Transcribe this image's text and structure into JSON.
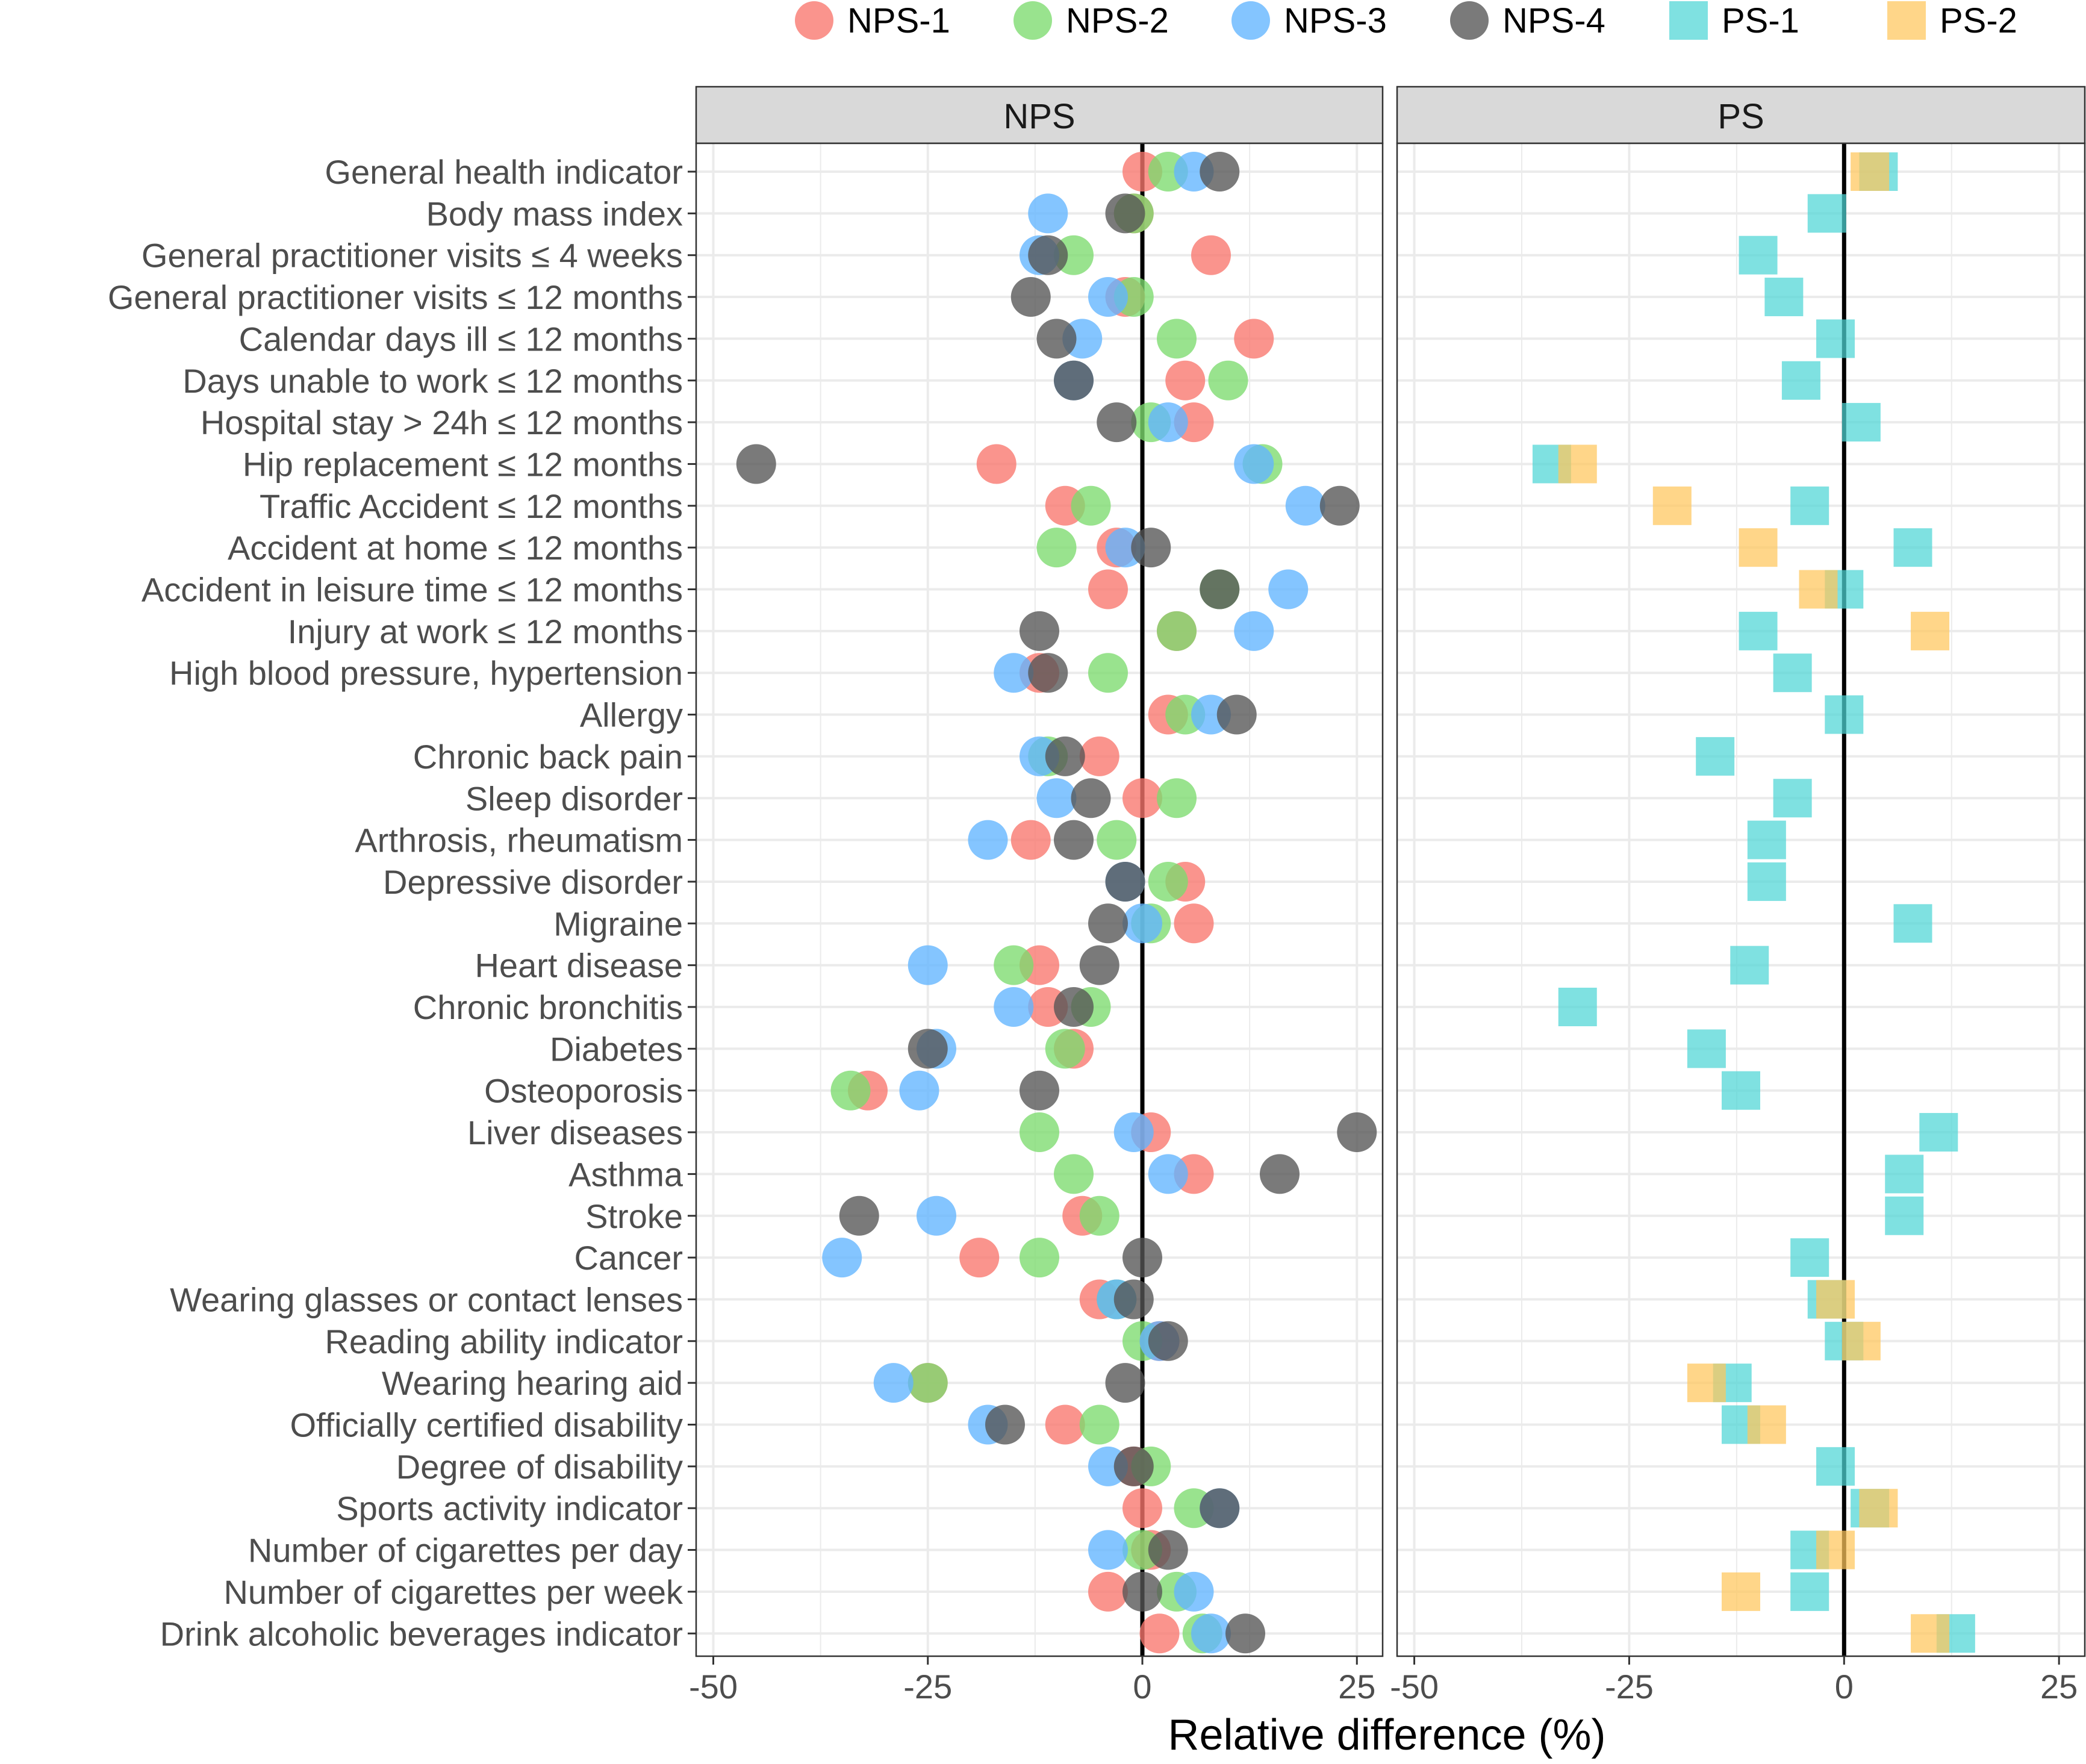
{
  "chart_data": {
    "type": "scatter",
    "xlabel": "Relative difference (%)",
    "xlim": [
      -52,
      28
    ],
    "xticks": [
      -50,
      -25,
      0,
      25
    ],
    "xtick_labels": [
      "-50",
      "-25",
      "0",
      "25"
    ],
    "reference_line_x": 0,
    "grid": true,
    "legend_position": "top",
    "panels": [
      "NPS",
      "PS"
    ],
    "categories": [
      "General health indicator",
      "Body mass index",
      "General practitioner visits ≤ 4 weeks",
      "General practitioner visits ≤ 12 months",
      "Calendar days ill ≤ 12 months",
      "Days unable to work ≤ 12 months",
      "Hospital stay > 24h ≤ 12 months",
      "Hip replacement ≤ 12 months",
      "Traffic Accident ≤ 12 months",
      "Accident at home ≤ 12 months",
      "Accident in leisure time ≤ 12 months",
      "Injury at work ≤ 12 months",
      "High blood pressure, hypertension",
      "Allergy",
      "Chronic back pain",
      "Sleep disorder",
      "Arthrosis, rheumatism",
      "Depressive disorder",
      "Migraine",
      "Heart disease",
      "Chronic bronchitis",
      "Diabetes",
      "Osteoporosis",
      "Liver diseases",
      "Asthma",
      "Stroke",
      "Cancer",
      "Wearing glasses or contact lenses",
      "Reading ability indicator",
      "Wearing hearing aid",
      "Officially certified disability",
      "Degree of disability",
      "Sports activity indicator",
      "Number of cigarettes per day",
      "Number of cigarettes per week",
      "Drink alcoholic beverages indicator"
    ],
    "series": [
      {
        "name": "NPS-1",
        "panel": "NPS",
        "shape": "circle",
        "color": "#F8766D",
        "values": [
          0,
          -1,
          8,
          -2,
          13,
          5,
          6,
          -17,
          -9,
          -3,
          -4,
          4,
          -12,
          3,
          -5,
          0,
          -13,
          5,
          6,
          -12,
          -11,
          -8,
          -32,
          1,
          6,
          -7,
          -19,
          -5,
          2,
          -25,
          -9,
          -1,
          0,
          1,
          -4,
          2
        ]
      },
      {
        "name": "NPS-2",
        "panel": "NPS",
        "shape": "circle",
        "color": "#7CDB6E",
        "values": [
          3,
          -1,
          -8,
          -1,
          4,
          10,
          1,
          14,
          -6,
          -10,
          9,
          4,
          -4,
          5,
          -11,
          4,
          -3,
          3,
          1,
          -15,
          -6,
          -9,
          -34,
          -12,
          -8,
          -5,
          -12,
          -3,
          0,
          -25,
          -5,
          1,
          6,
          0,
          4,
          7
        ]
      },
      {
        "name": "NPS-3",
        "panel": "NPS",
        "shape": "circle",
        "color": "#61B5FF",
        "values": [
          6,
          -11,
          -12,
          -4,
          -7,
          -8,
          3,
          13,
          19,
          -2,
          17,
          13,
          -15,
          8,
          -12,
          -10,
          -18,
          -2,
          0,
          -25,
          -15,
          -24,
          -26,
          -1,
          3,
          -24,
          -35,
          -3,
          2,
          -29,
          -18,
          -4,
          9,
          -4,
          6,
          8
        ]
      },
      {
        "name": "NPS-4",
        "panel": "NPS",
        "shape": "circle",
        "color": "#555555",
        "values": [
          9,
          -2,
          -11,
          -13,
          -10,
          -8,
          -3,
          -45,
          23,
          1,
          9,
          -12,
          -11,
          11,
          -9,
          -6,
          -8,
          -2,
          -4,
          -5,
          -8,
          -25,
          -12,
          25,
          16,
          -33,
          0,
          -1,
          3,
          -2,
          -16,
          -1,
          9,
          3,
          0,
          12
        ]
      },
      {
        "name": "PS-1",
        "panel": "PS",
        "shape": "square",
        "color": "#4DD6D6",
        "values": [
          4,
          -2,
          -10,
          -7,
          -1,
          -5,
          2,
          -34,
          -4,
          8,
          0,
          -10,
          -6,
          0,
          -15,
          -6,
          -9,
          -9,
          8,
          -11,
          -31,
          -16,
          -12,
          11,
          7,
          7,
          -4,
          -2,
          0,
          -13,
          -12,
          -1,
          3,
          -4,
          -4,
          13
        ]
      },
      {
        "name": "PS-2",
        "panel": "PS",
        "shape": "square",
        "color": "#FFC65C",
        "values": [
          3,
          null,
          null,
          null,
          null,
          null,
          null,
          -31,
          -20,
          -10,
          -3,
          10,
          null,
          null,
          null,
          null,
          null,
          null,
          null,
          null,
          null,
          null,
          null,
          null,
          null,
          null,
          null,
          -1,
          2,
          -16,
          -9,
          null,
          4,
          -1,
          -12,
          10
        ]
      }
    ]
  }
}
